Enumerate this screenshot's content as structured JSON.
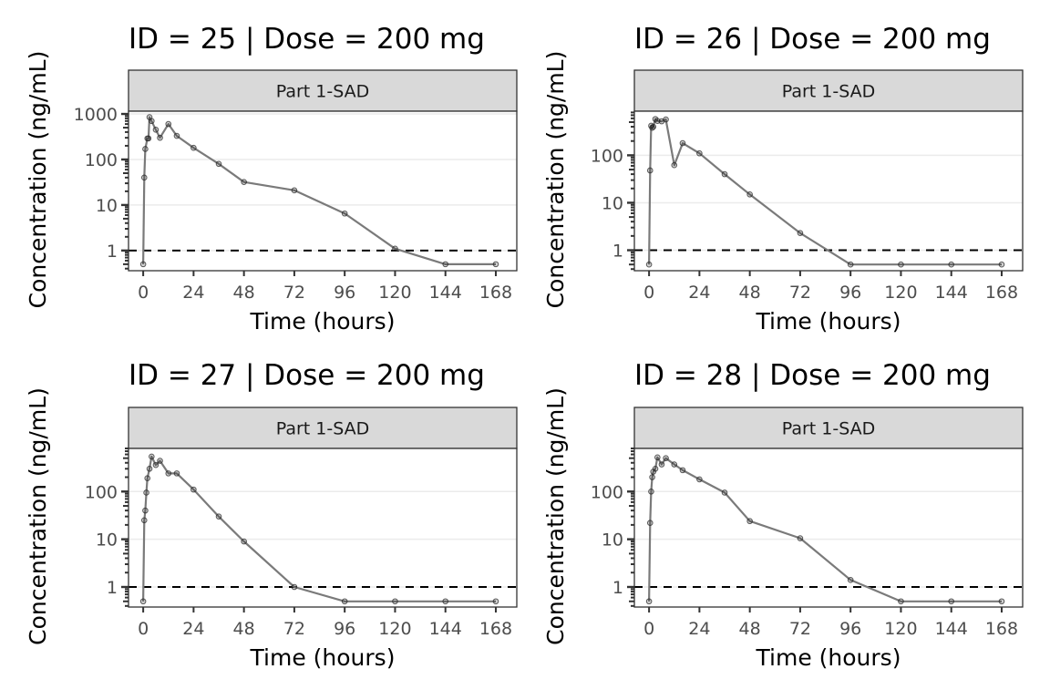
{
  "chart_data": [
    {
      "type": "line",
      "title": "ID = 25 | Dose = 200 mg",
      "strip_label": "Part 1-SAD",
      "xlabel": "Time (hours)",
      "ylabel": "Concentration (ng/mL)",
      "y_scale": "log10",
      "xlim": [
        -7,
        178
      ],
      "ylim": [
        0.36,
        1150
      ],
      "x_ticks": [
        0,
        24,
        48,
        72,
        96,
        120,
        144,
        168
      ],
      "x_tick_labels": [
        "0",
        "24",
        "48",
        "72",
        "96",
        "120",
        "144",
        "168"
      ],
      "y_ticks": [
        1,
        10,
        100,
        1000
      ],
      "y_tick_labels": [
        "1",
        "10",
        "100",
        "1000"
      ],
      "reference_line": {
        "y": 1,
        "style": "dashed",
        "color": "#000000"
      },
      "series_color": "#7a7a7a",
      "x": [
        0,
        0.5,
        1,
        2,
        2.5,
        3,
        4,
        6,
        8,
        12,
        16,
        24,
        36,
        48,
        72,
        96,
        120,
        144,
        168
      ],
      "y": [
        0.5,
        40,
        170,
        290,
        290,
        850,
        700,
        450,
        300,
        600,
        330,
        180,
        80,
        32,
        21,
        6.5,
        1.1,
        0.5,
        0.5
      ]
    },
    {
      "type": "line",
      "title": "ID = 26 | Dose = 200 mg",
      "strip_label": "Part 1-SAD",
      "xlabel": "Time (hours)",
      "ylabel": "Concentration (ng/mL)",
      "y_scale": "log10",
      "xlim": [
        -7,
        178
      ],
      "ylim": [
        0.37,
        850
      ],
      "x_ticks": [
        0,
        24,
        48,
        72,
        96,
        120,
        144,
        168
      ],
      "x_tick_labels": [
        "0",
        "24",
        "48",
        "72",
        "96",
        "120",
        "144",
        "168"
      ],
      "y_ticks": [
        1,
        10,
        100
      ],
      "y_tick_labels": [
        "1",
        "10",
        "100"
      ],
      "reference_line": {
        "y": 1,
        "style": "dashed",
        "color": "#000000"
      },
      "series_color": "#7a7a7a",
      "x": [
        0,
        0.5,
        1,
        1.5,
        2,
        3,
        4,
        6,
        8,
        12,
        16,
        24,
        36,
        48,
        72,
        96,
        120,
        144,
        168
      ],
      "y": [
        0.5,
        48,
        420,
        380,
        400,
        580,
        530,
        520,
        570,
        62,
        180,
        110,
        40,
        15,
        2.3,
        0.5,
        0.5,
        0.5,
        0.5
      ]
    },
    {
      "type": "line",
      "title": "ID = 27 | Dose = 200 mg",
      "strip_label": "Part 1-SAD",
      "xlabel": "Time (hours)",
      "ylabel": "Concentration (ng/mL)",
      "y_scale": "log10",
      "xlim": [
        -7,
        178
      ],
      "ylim": [
        0.38,
        800
      ],
      "x_ticks": [
        0,
        24,
        48,
        72,
        96,
        120,
        144,
        168
      ],
      "x_tick_labels": [
        "0",
        "24",
        "48",
        "72",
        "96",
        "120",
        "144",
        "168"
      ],
      "y_ticks": [
        1,
        10,
        100
      ],
      "y_tick_labels": [
        "1",
        "10",
        "100"
      ],
      "reference_line": {
        "y": 1,
        "style": "dashed",
        "color": "#000000"
      },
      "series_color": "#7a7a7a",
      "x": [
        0,
        0.5,
        1,
        1.5,
        2,
        3,
        4,
        6,
        8,
        12,
        16,
        24,
        36,
        48,
        72,
        96,
        120,
        144,
        168
      ],
      "y": [
        0.5,
        25,
        40,
        95,
        190,
        300,
        540,
        360,
        440,
        240,
        240,
        110,
        30,
        9,
        1.0,
        0.5,
        0.5,
        0.5,
        0.5
      ]
    },
    {
      "type": "line",
      "title": "ID = 28 | Dose = 200 mg",
      "strip_label": "Part 1-SAD",
      "xlabel": "Time (hours)",
      "ylabel": "Concentration (ng/mL)",
      "y_scale": "log10",
      "xlim": [
        -7,
        178
      ],
      "ylim": [
        0.38,
        800
      ],
      "x_ticks": [
        0,
        24,
        48,
        72,
        96,
        120,
        144,
        168
      ],
      "x_tick_labels": [
        "0",
        "24",
        "48",
        "72",
        "96",
        "120",
        "144",
        "168"
      ],
      "y_ticks": [
        1,
        10,
        100
      ],
      "y_tick_labels": [
        "1",
        "10",
        "100"
      ],
      "reference_line": {
        "y": 1,
        "style": "dashed",
        "color": "#000000"
      },
      "series_color": "#7a7a7a",
      "x": [
        0,
        0.5,
        1,
        1.5,
        2,
        3,
        4,
        6,
        8,
        12,
        16,
        24,
        36,
        48,
        72,
        96,
        120,
        144,
        168
      ],
      "y": [
        0.5,
        22,
        100,
        200,
        260,
        300,
        520,
        370,
        500,
        370,
        280,
        180,
        95,
        24,
        10.5,
        1.4,
        0.5,
        0.5,
        0.5
      ]
    }
  ]
}
